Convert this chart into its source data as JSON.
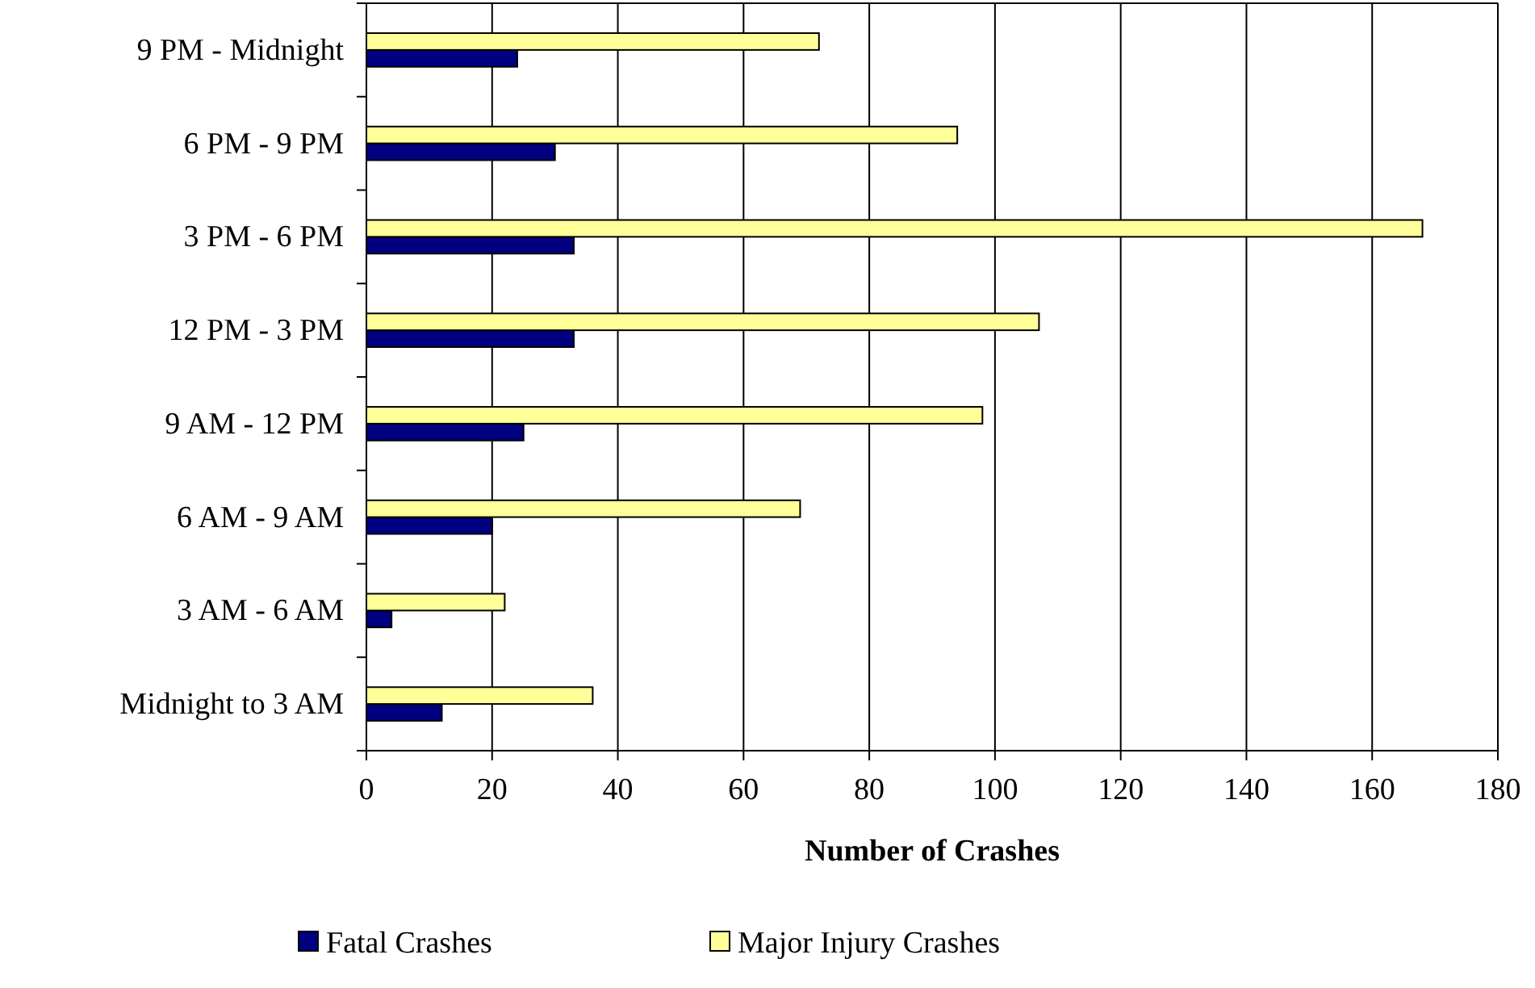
{
  "chart_data": {
    "type": "bar",
    "orientation": "horizontal",
    "xlabel": "Number of Crashes",
    "categories": [
      "9 PM - Midnight",
      "6 PM - 9 PM",
      "3 PM - 6 PM",
      "12 PM - 3 PM",
      "9 AM - 12 PM",
      "6 AM - 9 AM",
      "3 AM - 6 AM",
      "Midnight to 3 AM"
    ],
    "series": [
      {
        "name": "Fatal Crashes",
        "color": "#000080",
        "values": [
          24,
          30,
          33,
          33,
          25,
          20,
          4,
          12
        ]
      },
      {
        "name": "Major Injury Crashes",
        "color": "#ffff99",
        "values": [
          72,
          94,
          168,
          107,
          98,
          69,
          22,
          36
        ]
      }
    ],
    "xlim": [
      0,
      180
    ],
    "xticks": [
      0,
      20,
      40,
      60,
      80,
      100,
      120,
      140,
      160,
      180
    ],
    "grid": "x",
    "legend": "bottom"
  }
}
